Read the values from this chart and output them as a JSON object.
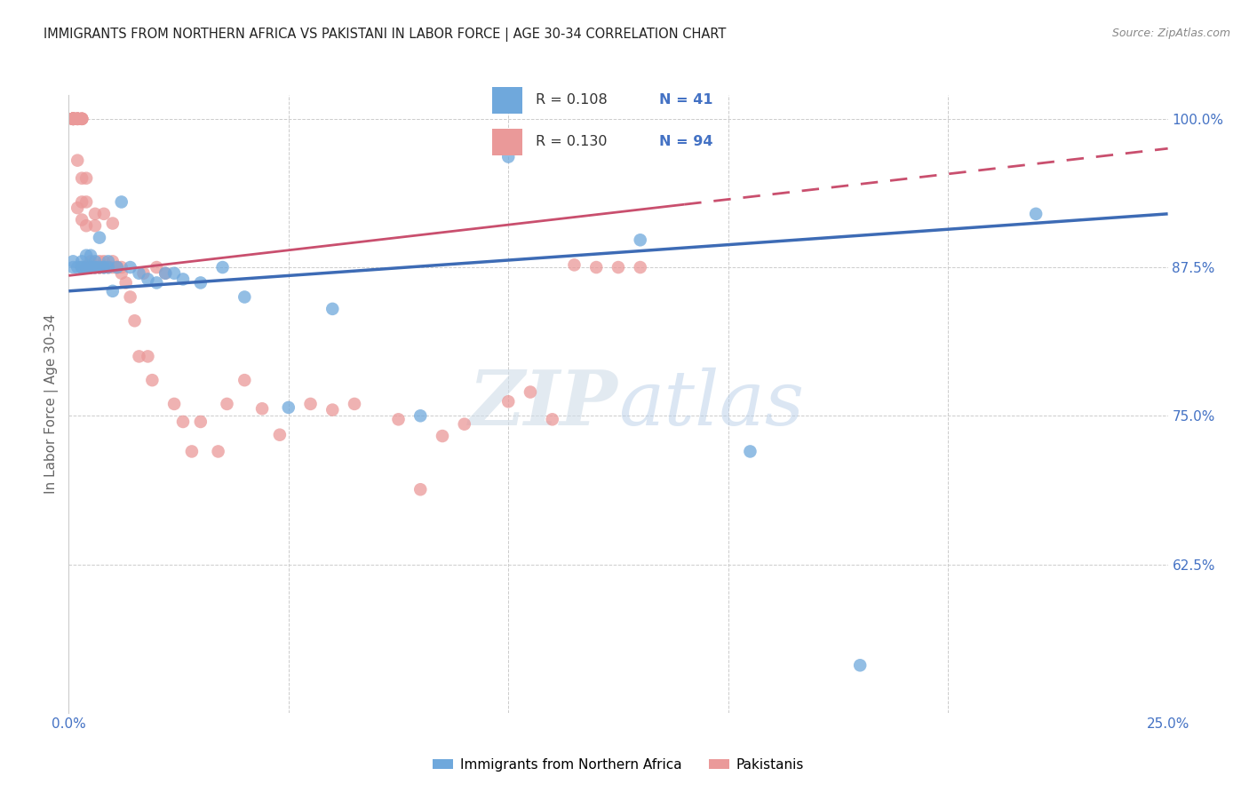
{
  "title": "IMMIGRANTS FROM NORTHERN AFRICA VS PAKISTANI IN LABOR FORCE | AGE 30-34 CORRELATION CHART",
  "source": "Source: ZipAtlas.com",
  "ylabel_label": "In Labor Force | Age 30-34",
  "legend_blue_label": "Immigrants from Northern Africa",
  "legend_pink_label": "Pakistanis",
  "blue_color": "#6fa8dc",
  "pink_color": "#ea9999",
  "trendline_blue_color": "#3d6bb5",
  "trendline_pink_color": "#c94f6e",
  "axis_color": "#4472c4",
  "title_color": "#222222",
  "background_color": "#ffffff",
  "watermark_zip": "ZIP",
  "watermark_atlas": "atlas",
  "xlim": [
    0.0,
    0.25
  ],
  "ylim": [
    0.5,
    1.02
  ],
  "R_blue": "0.108",
  "N_blue": "41",
  "R_pink": "0.130",
  "N_pink": "94",
  "blue_x": [
    0.001,
    0.001,
    0.002,
    0.003,
    0.003,
    0.003,
    0.004,
    0.004,
    0.005,
    0.005,
    0.005,
    0.006,
    0.006,
    0.006,
    0.007,
    0.007,
    0.008,
    0.008,
    0.009,
    0.009,
    0.01,
    0.011,
    0.012,
    0.014,
    0.016,
    0.018,
    0.02,
    0.022,
    0.024,
    0.026,
    0.03,
    0.035,
    0.04,
    0.05,
    0.06,
    0.08,
    0.1,
    0.13,
    0.155,
    0.18,
    0.22
  ],
  "blue_y": [
    0.875,
    0.88,
    0.875,
    0.88,
    0.875,
    0.875,
    0.875,
    0.885,
    0.875,
    0.885,
    0.875,
    0.875,
    0.88,
    0.875,
    0.9,
    0.875,
    0.875,
    0.875,
    0.88,
    0.875,
    0.855,
    0.875,
    0.93,
    0.875,
    0.87,
    0.865,
    0.862,
    0.87,
    0.87,
    0.865,
    0.862,
    0.875,
    0.85,
    0.757,
    0.84,
    0.75,
    0.968,
    0.898,
    0.72,
    0.54,
    0.92
  ],
  "pink_x": [
    0.001,
    0.001,
    0.001,
    0.001,
    0.001,
    0.001,
    0.001,
    0.001,
    0.001,
    0.001,
    0.001,
    0.001,
    0.001,
    0.001,
    0.001,
    0.002,
    0.002,
    0.002,
    0.002,
    0.002,
    0.002,
    0.002,
    0.002,
    0.003,
    0.003,
    0.003,
    0.003,
    0.003,
    0.003,
    0.003,
    0.003,
    0.004,
    0.004,
    0.004,
    0.004,
    0.004,
    0.005,
    0.005,
    0.005,
    0.005,
    0.006,
    0.006,
    0.006,
    0.006,
    0.007,
    0.007,
    0.007,
    0.007,
    0.007,
    0.008,
    0.008,
    0.008,
    0.008,
    0.009,
    0.009,
    0.01,
    0.01,
    0.01,
    0.011,
    0.011,
    0.012,
    0.012,
    0.013,
    0.014,
    0.015,
    0.016,
    0.017,
    0.018,
    0.019,
    0.02,
    0.022,
    0.024,
    0.026,
    0.028,
    0.03,
    0.034,
    0.036,
    0.04,
    0.044,
    0.048,
    0.055,
    0.06,
    0.065,
    0.075,
    0.08,
    0.085,
    0.09,
    0.1,
    0.105,
    0.11,
    0.115,
    0.12,
    0.125,
    0.13
  ],
  "pink_y": [
    1.0,
    1.0,
    1.0,
    1.0,
    1.0,
    1.0,
    1.0,
    1.0,
    1.0,
    1.0,
    1.0,
    1.0,
    1.0,
    1.0,
    1.0,
    1.0,
    1.0,
    1.0,
    1.0,
    1.0,
    1.0,
    0.965,
    0.925,
    1.0,
    1.0,
    1.0,
    1.0,
    0.95,
    0.93,
    0.915,
    0.875,
    0.95,
    0.93,
    0.91,
    0.875,
    0.875,
    0.875,
    0.88,
    0.875,
    0.875,
    0.92,
    0.91,
    0.875,
    0.875,
    0.875,
    0.875,
    0.88,
    0.875,
    0.875,
    0.875,
    0.875,
    0.92,
    0.88,
    0.875,
    0.875,
    0.912,
    0.88,
    0.875,
    0.875,
    0.875,
    0.875,
    0.87,
    0.862,
    0.85,
    0.83,
    0.8,
    0.87,
    0.8,
    0.78,
    0.875,
    0.87,
    0.76,
    0.745,
    0.72,
    0.745,
    0.72,
    0.76,
    0.78,
    0.756,
    0.734,
    0.76,
    0.755,
    0.76,
    0.747,
    0.688,
    0.733,
    0.743,
    0.762,
    0.77,
    0.747,
    0.877,
    0.875,
    0.875,
    0.875
  ],
  "trendline_blue_x0": 0.0,
  "trendline_blue_y0": 0.855,
  "trendline_blue_x1": 0.25,
  "trendline_blue_y1": 0.92,
  "trendline_pink_x0": 0.0,
  "trendline_pink_y0": 0.868,
  "trendline_pink_x1": 0.25,
  "trendline_pink_y1": 0.975
}
